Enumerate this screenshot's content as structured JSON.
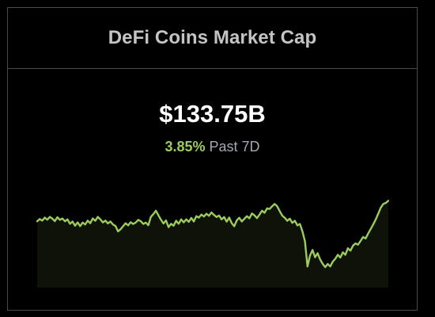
{
  "widget": {
    "title": "DeFi Coins Market Cap",
    "value": "$133.75B",
    "change_percent": "3.85%",
    "change_period": "Past 7D"
  },
  "colors": {
    "background": "#000000",
    "border": "#4a4a4a",
    "title": "#c4c4c4",
    "value": "#ffffff",
    "positive": "#9ccc5c",
    "muted": "#a3a8b3",
    "area_fill": "#0e1209"
  },
  "chart_data": {
    "type": "area",
    "title": "",
    "xlabel": "",
    "ylabel": "",
    "grid": false,
    "legend": "none",
    "ylim": [
      90,
      150
    ],
    "values": [
      127.5,
      128.8,
      127.9,
      129.6,
      128.4,
      130.0,
      129.0,
      127.6,
      129.8,
      128.3,
      129.1,
      127.5,
      128.6,
      126.1,
      127.4,
      125.0,
      126.9,
      124.8,
      126.8,
      125.7,
      127.9,
      126.4,
      129.1,
      127.8,
      130.0,
      128.6,
      126.9,
      127.9,
      126.3,
      127.4,
      125.7,
      124.9,
      121.8,
      123.0,
      124.7,
      126.4,
      125.2,
      127.0,
      126.0,
      126.8,
      128.3,
      127.6,
      126.0,
      126.8,
      125.3,
      130.0,
      131.6,
      133.5,
      130.9,
      128.4,
      126.3,
      128.0,
      124.2,
      126.1,
      125.0,
      127.8,
      126.1,
      128.6,
      126.9,
      128.6,
      127.2,
      129.4,
      127.4,
      130.4,
      129.6,
      131.3,
      130.2,
      131.8,
      130.6,
      132.5,
      131.1,
      129.9,
      130.8,
      128.6,
      129.9,
      127.3,
      129.6,
      126.5,
      124.7,
      128.0,
      129.5,
      127.4,
      128.9,
      130.4,
      129.2,
      131.9,
      130.9,
      129.3,
      131.3,
      133.5,
      132.3,
      134.8,
      134.5,
      136.0,
      137.3,
      136.0,
      133.3,
      130.7,
      129.5,
      127.8,
      129.0,
      126.6,
      127.8,
      125.2,
      126.0,
      121.8,
      116.2,
      102.0,
      108.2,
      111.3,
      107.2,
      109.5,
      106.0,
      103.5,
      101.6,
      103.4,
      102.0,
      104.7,
      106.3,
      108.6,
      107.0,
      110.0,
      108.6,
      112.3,
      110.9,
      113.7,
      115.0,
      114.3,
      116.4,
      118.6,
      117.8,
      120.6,
      123.1,
      125.7,
      128.5,
      131.8,
      135.2,
      137.3,
      137.9,
      139.1
    ]
  }
}
